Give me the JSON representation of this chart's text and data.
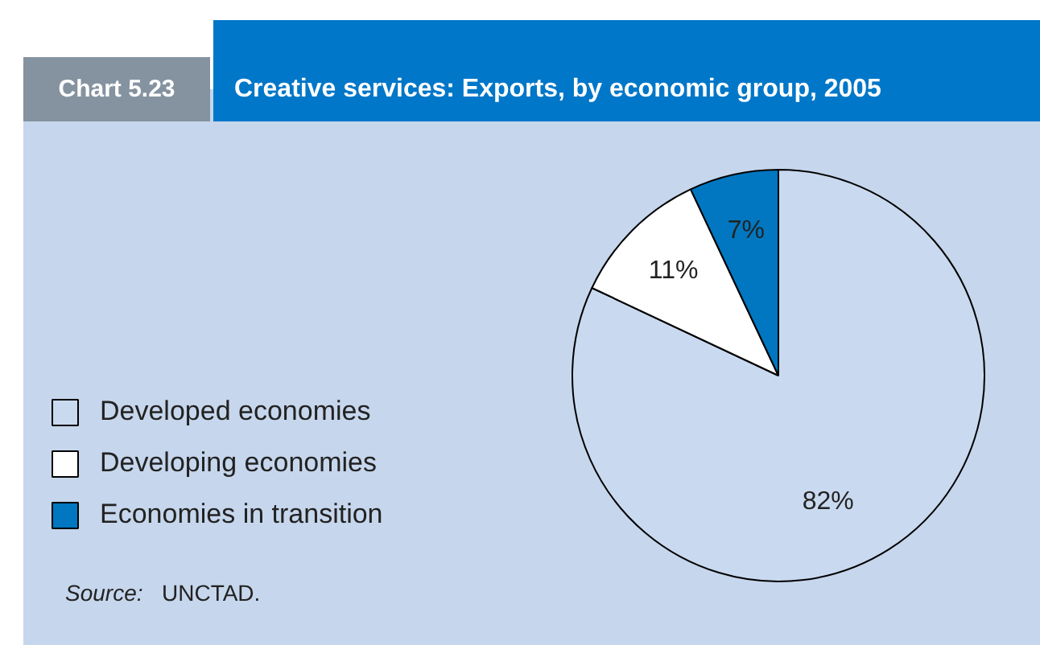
{
  "chart_data": {
    "type": "pie",
    "title": "Creative services: Exports, by economic group, 2005",
    "categories": [
      "Developed economies",
      "Developing economies",
      "Economies in transition"
    ],
    "values": [
      82,
      11,
      7
    ],
    "colors": [
      "#c9d9ef",
      "#ffffff",
      "#0077c0"
    ],
    "value_labels": [
      "82%",
      "11%",
      "7%"
    ],
    "legend": "left",
    "annotations": [
      "Chart 5.23",
      "Source: UNCTAD."
    ]
  }
}
